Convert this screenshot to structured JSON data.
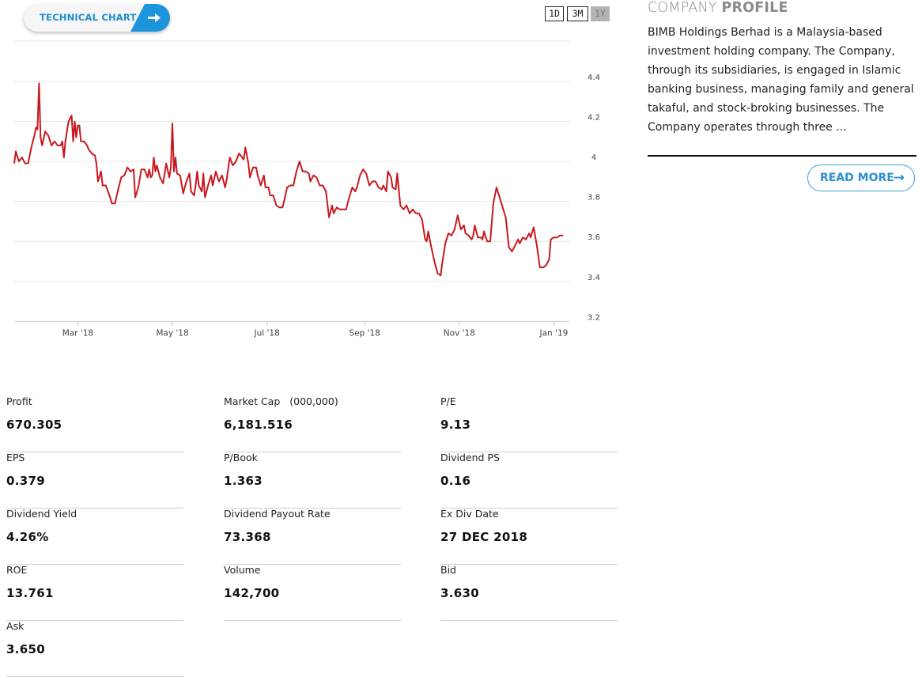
{
  "technical_chart": {
    "label": "TECHNICAL CHART",
    "arrow_icon": "arrow-right-icon"
  },
  "ranges": {
    "d1": "1D",
    "m3": "3M",
    "y1": "1Y",
    "selected": "1Y"
  },
  "chart_data": {
    "type": "line",
    "series_color": "#c8191f",
    "y_ticks": [
      "4.4",
      "4.2",
      "4",
      "3.8",
      "3.6",
      "3.4",
      "3.2"
    ],
    "ylim": [
      3.2,
      4.6
    ],
    "x_ticks": [
      {
        "label": "Mar '18",
        "t": 41
      },
      {
        "label": "May '18",
        "t": 102
      },
      {
        "label": "Jul '18",
        "t": 163
      },
      {
        "label": "Sep '18",
        "t": 226
      },
      {
        "label": "Nov '18",
        "t": 287
      },
      {
        "label": "Jan '19",
        "t": 348
      }
    ],
    "x_range": [
      0,
      359
    ],
    "series": [
      {
        "values": [
          [
            0,
            3.99
          ],
          [
            1,
            4.05
          ],
          [
            3,
            4.0
          ],
          [
            5,
            4.02
          ],
          [
            7,
            3.99
          ],
          [
            9,
            3.99
          ],
          [
            11,
            4.07
          ],
          [
            13,
            4.13
          ],
          [
            14,
            4.17
          ],
          [
            15,
            4.16
          ],
          [
            16,
            4.39
          ],
          [
            17,
            4.12
          ],
          [
            18,
            4.08
          ],
          [
            20,
            4.15
          ],
          [
            22,
            4.13
          ],
          [
            24,
            4.08
          ],
          [
            26,
            4.1
          ],
          [
            28,
            4.08
          ],
          [
            30,
            4.08
          ],
          [
            31,
            4.1
          ],
          [
            32,
            4.02
          ],
          [
            33,
            4.1
          ],
          [
            35,
            4.2
          ],
          [
            37,
            4.23
          ],
          [
            38,
            4.1
          ],
          [
            39,
            4.2
          ],
          [
            40,
            4.12
          ],
          [
            41,
            4.18
          ],
          [
            42,
            4.18
          ],
          [
            43,
            4.1
          ],
          [
            45,
            4.1
          ],
          [
            47,
            4.08
          ],
          [
            48,
            4.06
          ],
          [
            50,
            4.04
          ],
          [
            52,
            4.03
          ],
          [
            53,
            3.99
          ],
          [
            54,
            3.9
          ],
          [
            56,
            3.95
          ],
          [
            57,
            3.88
          ],
          [
            59,
            3.88
          ],
          [
            61,
            3.84
          ],
          [
            63,
            3.79
          ],
          [
            65,
            3.79
          ],
          [
            67,
            3.86
          ],
          [
            69,
            3.92
          ],
          [
            71,
            3.93
          ],
          [
            73,
            3.97
          ],
          [
            75,
            3.95
          ],
          [
            77,
            3.96
          ],
          [
            78,
            3.82
          ],
          [
            80,
            3.87
          ],
          [
            82,
            3.96
          ],
          [
            84,
            3.96
          ],
          [
            86,
            3.92
          ],
          [
            87,
            3.96
          ],
          [
            88,
            3.92
          ],
          [
            89,
            3.93
          ],
          [
            90,
            4.02
          ],
          [
            91,
            3.95
          ],
          [
            92,
            3.98
          ],
          [
            94,
            3.92
          ],
          [
            96,
            3.89
          ],
          [
            98,
            3.99
          ],
          [
            100,
            3.92
          ],
          [
            101,
            3.97
          ],
          [
            102,
            4.19
          ],
          [
            103,
            3.95
          ],
          [
            104,
            4.02
          ],
          [
            105,
            3.94
          ],
          [
            107,
            3.93
          ],
          [
            109,
            3.84
          ],
          [
            111,
            3.9
          ],
          [
            113,
            3.94
          ],
          [
            114,
            3.85
          ],
          [
            116,
            3.83
          ],
          [
            117,
            3.88
          ],
          [
            118,
            3.95
          ],
          [
            119,
            3.88
          ],
          [
            121,
            3.85
          ],
          [
            122,
            3.94
          ],
          [
            123,
            3.82
          ],
          [
            125,
            3.88
          ],
          [
            127,
            3.93
          ],
          [
            128,
            3.88
          ],
          [
            130,
            3.95
          ],
          [
            132,
            3.9
          ],
          [
            134,
            3.93
          ],
          [
            136,
            3.87
          ],
          [
            137,
            3.91
          ],
          [
            139,
            4.02
          ],
          [
            141,
            3.98
          ],
          [
            143,
            4.0
          ],
          [
            145,
            4.04
          ],
          [
            146,
            4.03
          ],
          [
            148,
            4.01
          ],
          [
            149,
            4.07
          ],
          [
            151,
            3.99
          ],
          [
            152,
            3.92
          ],
          [
            154,
            3.97
          ],
          [
            156,
            3.97
          ],
          [
            157,
            3.93
          ],
          [
            159,
            3.88
          ],
          [
            161,
            3.93
          ],
          [
            162,
            3.87
          ],
          [
            164,
            3.87
          ],
          [
            165,
            3.83
          ],
          [
            167,
            3.83
          ],
          [
            169,
            3.78
          ],
          [
            171,
            3.77
          ],
          [
            173,
            3.77
          ],
          [
            174,
            3.8
          ],
          [
            176,
            3.87
          ],
          [
            178,
            3.88
          ],
          [
            180,
            3.88
          ],
          [
            182,
            3.95
          ],
          [
            184,
            4.0
          ],
          [
            186,
            3.95
          ],
          [
            188,
            3.95
          ],
          [
            190,
            3.94
          ],
          [
            191,
            3.9
          ],
          [
            193,
            3.93
          ],
          [
            195,
            3.92
          ],
          [
            197,
            3.88
          ],
          [
            199,
            3.88
          ],
          [
            201,
            3.85
          ],
          [
            203,
            3.72
          ],
          [
            205,
            3.78
          ],
          [
            206,
            3.74
          ],
          [
            208,
            3.77
          ],
          [
            210,
            3.76
          ],
          [
            212,
            3.76
          ],
          [
            214,
            3.76
          ],
          [
            216,
            3.82
          ],
          [
            218,
            3.87
          ],
          [
            220,
            3.85
          ],
          [
            221,
            3.87
          ],
          [
            223,
            3.93
          ],
          [
            225,
            3.96
          ],
          [
            227,
            3.94
          ],
          [
            229,
            3.88
          ],
          [
            231,
            3.9
          ],
          [
            233,
            3.9
          ],
          [
            235,
            3.87
          ],
          [
            237,
            3.86
          ],
          [
            238,
            3.88
          ],
          [
            240,
            3.85
          ],
          [
            241,
            3.95
          ],
          [
            243,
            3.92
          ],
          [
            244,
            3.87
          ],
          [
            246,
            3.86
          ],
          [
            247,
            3.94
          ],
          [
            249,
            3.78
          ],
          [
            251,
            3.76
          ],
          [
            253,
            3.78
          ],
          [
            255,
            3.74
          ],
          [
            257,
            3.76
          ],
          [
            259,
            3.74
          ],
          [
            261,
            3.74
          ],
          [
            263,
            3.71
          ],
          [
            265,
            3.61
          ],
          [
            266,
            3.6
          ],
          [
            267,
            3.65
          ],
          [
            269,
            3.57
          ],
          [
            271,
            3.5
          ],
          [
            273,
            3.44
          ],
          [
            275,
            3.43
          ],
          [
            276,
            3.49
          ],
          [
            278,
            3.59
          ],
          [
            280,
            3.64
          ],
          [
            282,
            3.63
          ],
          [
            284,
            3.66
          ],
          [
            286,
            3.73
          ],
          [
            288,
            3.66
          ],
          [
            290,
            3.68
          ],
          [
            291,
            3.64
          ],
          [
            293,
            3.63
          ],
          [
            295,
            3.61
          ],
          [
            296,
            3.63
          ],
          [
            297,
            3.68
          ],
          [
            299,
            3.62
          ],
          [
            301,
            3.62
          ],
          [
            302,
            3.61
          ],
          [
            303,
            3.65
          ],
          [
            305,
            3.6
          ],
          [
            307,
            3.6
          ],
          [
            309,
            3.79
          ],
          [
            311,
            3.87
          ],
          [
            313,
            3.82
          ],
          [
            315,
            3.77
          ],
          [
            317,
            3.72
          ],
          [
            319,
            3.57
          ],
          [
            321,
            3.55
          ],
          [
            323,
            3.58
          ],
          [
            325,
            3.61
          ],
          [
            326,
            3.59
          ],
          [
            328,
            3.62
          ],
          [
            330,
            3.61
          ],
          [
            332,
            3.64
          ],
          [
            333,
            3.62
          ],
          [
            335,
            3.67
          ],
          [
            337,
            3.58
          ],
          [
            339,
            3.47
          ],
          [
            341,
            3.47
          ],
          [
            343,
            3.48
          ],
          [
            345,
            3.51
          ],
          [
            346,
            3.61
          ],
          [
            348,
            3.62
          ],
          [
            350,
            3.62
          ],
          [
            352,
            3.63
          ],
          [
            354,
            3.63
          ]
        ]
      }
    ]
  },
  "profile": {
    "title_light": "COMPANY ",
    "title_bold": "PROFILE",
    "text": "BIMB Holdings Berhad is a Malaysia-based investment holding company. The Company, through its subsidiaries, is engaged in Islamic banking business, managing family and general takaful, and stock-broking businesses. The Company operates through three ...",
    "read_more": "READ MORE",
    "read_more_icon": "arrow-right-icon"
  },
  "stats": [
    {
      "label": "Profit",
      "value": "670.305"
    },
    {
      "label": "Market Cap",
      "sub": "(000,000)",
      "value": "6,181.516"
    },
    {
      "label": "P/E",
      "value": "9.13"
    },
    {
      "label": "EPS",
      "value": "0.379"
    },
    {
      "label": "P/Book",
      "value": "1.363"
    },
    {
      "label": "Dividend PS",
      "value": "0.16"
    },
    {
      "label": "Dividend Yield",
      "value": "4.26%"
    },
    {
      "label": "Dividend Payout Rate",
      "value": "73.368"
    },
    {
      "label": "Ex Div Date",
      "value": "27 DEC 2018"
    },
    {
      "label": "ROE",
      "value": "13.761"
    },
    {
      "label": "Volume",
      "value": "142,700"
    },
    {
      "label": "Bid",
      "value": "3.630"
    },
    {
      "label": "Ask",
      "value": "3.650"
    }
  ]
}
